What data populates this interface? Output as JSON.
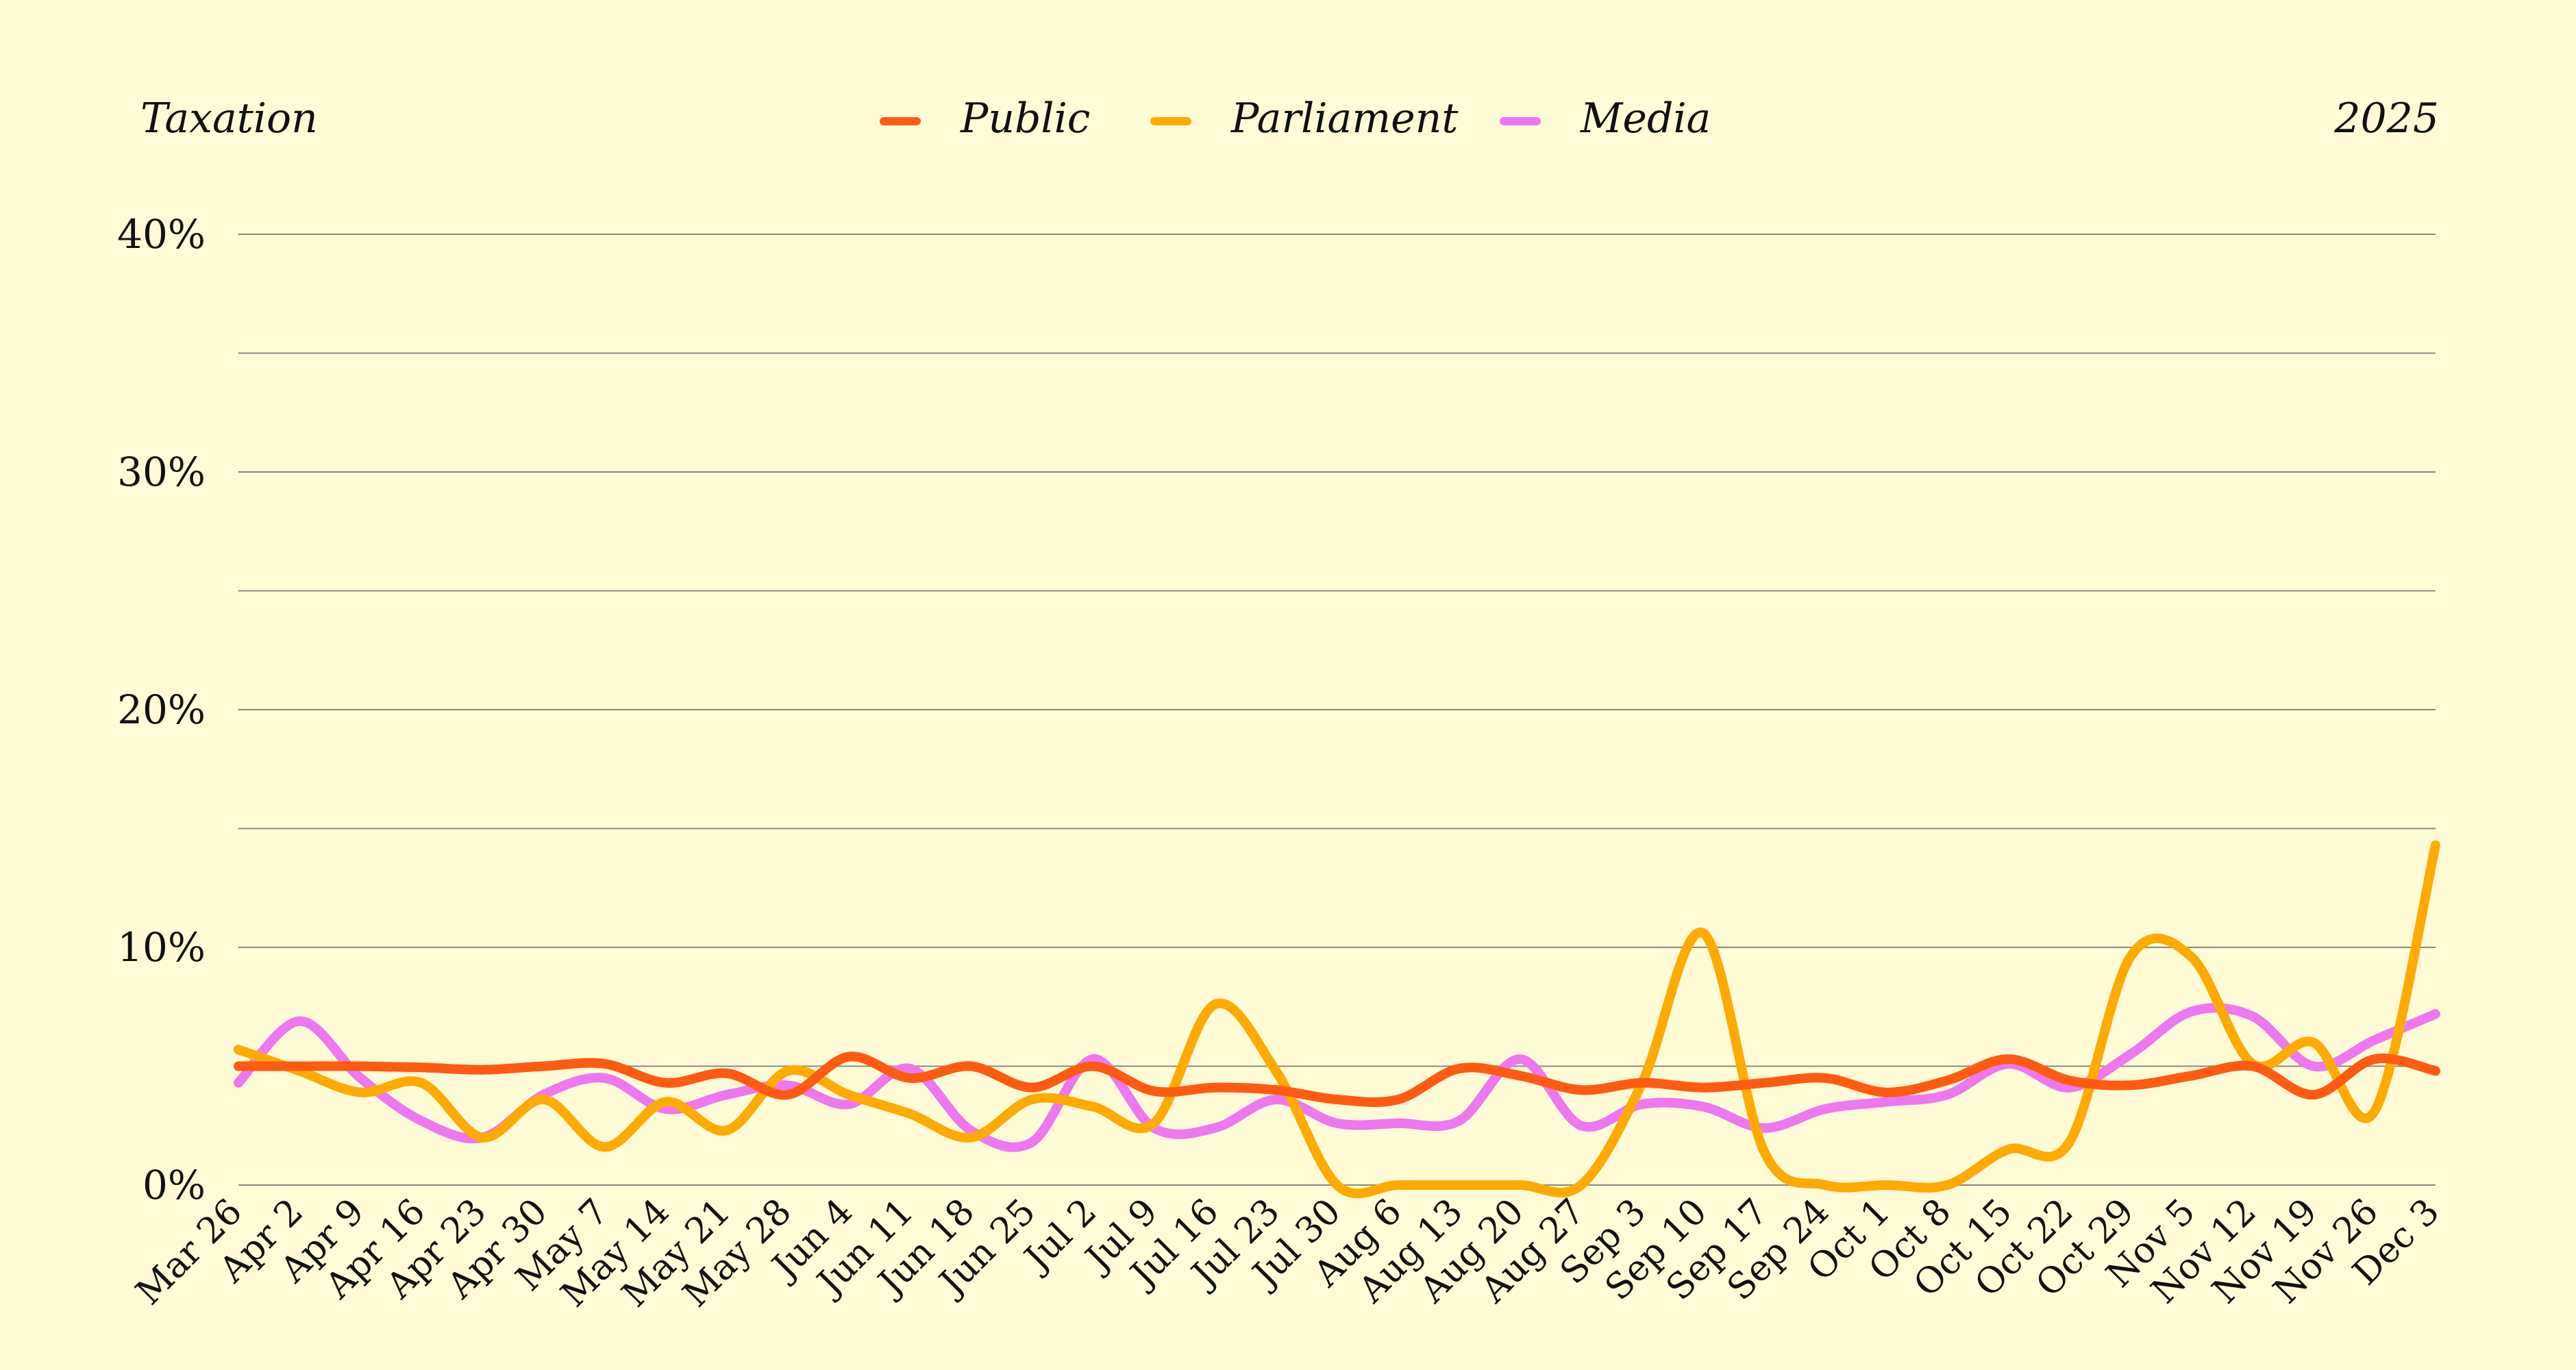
{
  "chart_data": {
    "type": "line",
    "title": "Taxation",
    "year_label": "2025",
    "xlabel": "",
    "ylabel": "",
    "ylim": [
      0,
      40
    ],
    "yticks": [
      "0%",
      "10%",
      "20%",
      "30%",
      "40%"
    ],
    "grid": true,
    "legend_placement": "top-center",
    "categories": [
      "Mar 26",
      "Apr 2",
      "Apr 9",
      "Apr 16",
      "Apr 23",
      "Apr 30",
      "May 7",
      "May 14",
      "May 21",
      "May 28",
      "Jun 4",
      "Jun 11",
      "Jun 18",
      "Jun 25",
      "Jul 2",
      "Jul 9",
      "Jul 16",
      "Jul 23",
      "Jul 30",
      "Aug 6",
      "Aug 13",
      "Aug 20",
      "Aug 27",
      "Sep 3",
      "Sep 10",
      "Sep 17",
      "Sep 24",
      "Oct 1",
      "Oct 8",
      "Oct 15",
      "Oct 22",
      "Oct 29",
      "Nov 5",
      "Nov 12",
      "Nov 19",
      "Nov 26",
      "Dec 3"
    ],
    "series": [
      {
        "name": "Public",
        "color": "#ff5a12",
        "values": [
          5.0,
          5.0,
          5.0,
          4.95,
          4.85,
          5.0,
          5.1,
          4.3,
          4.7,
          3.8,
          5.4,
          4.5,
          5.0,
          4.1,
          5.0,
          3.95,
          4.1,
          4.0,
          3.6,
          3.6,
          4.9,
          4.6,
          4.0,
          4.3,
          4.1,
          4.3,
          4.5,
          3.9,
          4.4,
          5.3,
          4.4,
          4.2,
          4.6,
          5.0,
          3.8,
          5.3,
          4.8
        ]
      },
      {
        "name": "Parliament",
        "color": "#ffaa00",
        "values": [
          5.7,
          4.8,
          3.9,
          4.3,
          2.0,
          3.6,
          1.6,
          3.5,
          2.3,
          4.8,
          3.8,
          3.0,
          2.0,
          3.6,
          3.3,
          2.6,
          7.6,
          4.8,
          0.0,
          0.0,
          0.0,
          0.0,
          0.0,
          4.3,
          10.6,
          1.4,
          0.0,
          0.0,
          0.0,
          1.5,
          1.8,
          9.6,
          9.6,
          5.1,
          6.0,
          3.1,
          14.3
        ]
      },
      {
        "name": "Media",
        "color": "#ee77f0",
        "values": [
          4.3,
          6.9,
          4.5,
          2.7,
          2.0,
          3.8,
          4.5,
          3.2,
          3.8,
          4.2,
          3.4,
          4.9,
          2.3,
          1.8,
          5.3,
          2.4,
          2.4,
          3.6,
          2.6,
          2.6,
          2.7,
          5.3,
          2.5,
          3.4,
          3.3,
          2.4,
          3.2,
          3.5,
          3.8,
          5.1,
          4.1,
          5.5,
          7.3,
          7.1,
          5.0,
          6.1,
          7.2
        ]
      }
    ]
  }
}
